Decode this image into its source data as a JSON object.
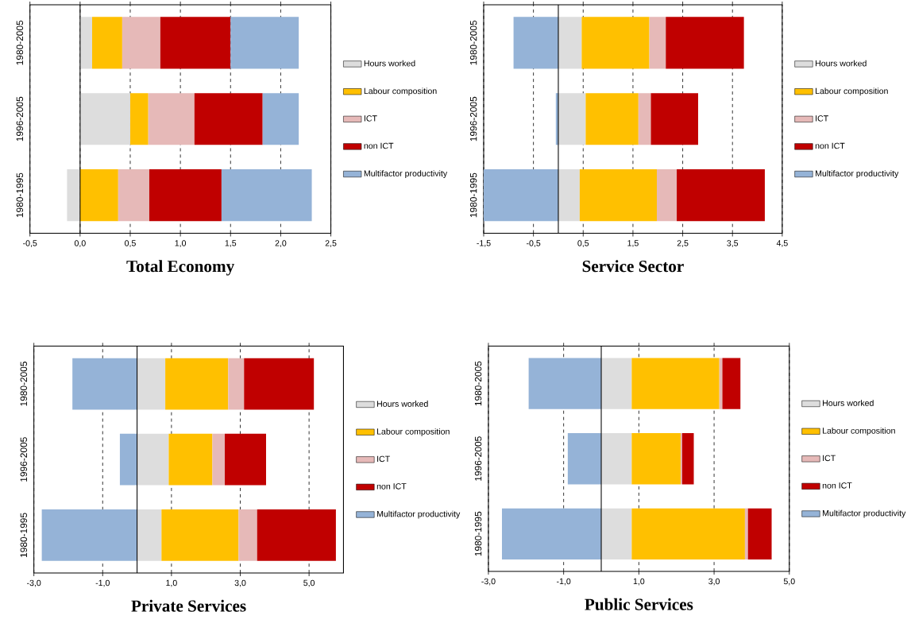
{
  "chart_data": [
    {
      "type": "bar",
      "orientation": "horizontal",
      "stacked": true,
      "title": "Total Economy",
      "categories": [
        "1980-2005",
        "1996-2005",
        "1980-1995"
      ],
      "series": [
        {
          "name": "Hours worked",
          "color": "#dddddd",
          "values": [
            0.12,
            0.5,
            -0.13
          ]
        },
        {
          "name": "Labour composition",
          "color": "#ffc000",
          "values": [
            0.3,
            0.18,
            0.38
          ]
        },
        {
          "name": "ICT",
          "color": "#e6b9b8",
          "values": [
            0.38,
            0.46,
            0.31
          ]
        },
        {
          "name": "non ICT",
          "color": "#c00000",
          "values": [
            0.7,
            0.68,
            0.72
          ]
        },
        {
          "name": "Multifactor productivity",
          "color": "#95b3d7",
          "values": [
            0.68,
            0.36,
            0.9
          ]
        }
      ],
      "xlim": [
        -0.5,
        2.5
      ],
      "xticks": [
        {
          "value": -0.5,
          "label": "-0,5"
        },
        {
          "value": 0,
          "label": "0,0"
        },
        {
          "value": 0.5,
          "label": "0,5"
        },
        {
          "value": 1,
          "label": "1,0"
        },
        {
          "value": 1.5,
          "label": "1,5"
        },
        {
          "value": 2,
          "label": "2,0"
        },
        {
          "value": 2.5,
          "label": "2,5"
        }
      ],
      "grid": "x",
      "legend": "right"
    },
    {
      "type": "bar",
      "orientation": "horizontal",
      "stacked": true,
      "title": "Service Sector",
      "categories": [
        "1980-2005",
        "1996-2005",
        "1980-1995"
      ],
      "series": [
        {
          "name": "Hours worked",
          "color": "#dddddd",
          "values": [
            0.47,
            0.55,
            0.43
          ]
        },
        {
          "name": "Labour composition",
          "color": "#ffc000",
          "values": [
            1.36,
            1.06,
            1.55
          ]
        },
        {
          "name": "ICT",
          "color": "#e6b9b8",
          "values": [
            0.33,
            0.25,
            0.4
          ]
        },
        {
          "name": "non ICT",
          "color": "#c00000",
          "values": [
            1.57,
            0.95,
            1.77
          ]
        },
        {
          "name": "Multifactor productivity",
          "color": "#95b3d7",
          "values": [
            -0.9,
            -0.05,
            -1.5
          ]
        }
      ],
      "xlim": [
        -1.5,
        4.5
      ],
      "xticks": [
        {
          "value": -1.5,
          "label": "-1,5"
        },
        {
          "value": -0.5,
          "label": "-0,5"
        },
        {
          "value": 0.5,
          "label": "0,5"
        },
        {
          "value": 1.5,
          "label": "1,5"
        },
        {
          "value": 2.5,
          "label": "2,5"
        },
        {
          "value": 3.5,
          "label": "3,5"
        },
        {
          "value": 4.5,
          "label": "4,5"
        }
      ],
      "grid": "x",
      "legend": "right"
    },
    {
      "type": "bar",
      "orientation": "horizontal",
      "stacked": true,
      "title": "Private Services",
      "categories": [
        "1980-2005",
        "1996-2005",
        "1980-1995"
      ],
      "series": [
        {
          "name": "Hours worked",
          "color": "#dddddd",
          "values": [
            0.82,
            0.92,
            0.71
          ]
        },
        {
          "name": "Labour composition",
          "color": "#ffc000",
          "values": [
            1.83,
            1.27,
            2.24
          ]
        },
        {
          "name": "ICT",
          "color": "#e6b9b8",
          "values": [
            0.46,
            0.36,
            0.54
          ]
        },
        {
          "name": "non ICT",
          "color": "#c00000",
          "values": [
            2.03,
            1.2,
            2.29
          ]
        },
        {
          "name": "Multifactor productivity",
          "color": "#95b3d7",
          "values": [
            -1.88,
            -0.5,
            -2.77
          ]
        }
      ],
      "xlim": [
        -3,
        6
      ],
      "xticks": [
        {
          "value": -3,
          "label": "-3,0"
        },
        {
          "value": -1,
          "label": "-1,0"
        },
        {
          "value": 1,
          "label": "1,0"
        },
        {
          "value": 3,
          "label": "3,0"
        },
        {
          "value": 5,
          "label": "5,0"
        }
      ],
      "grid": "x",
      "legend": "right"
    },
    {
      "type": "bar",
      "orientation": "horizontal",
      "stacked": true,
      "title": "Public Services",
      "categories": [
        "1980-2005",
        "1996-2005",
        "1980-1995"
      ],
      "series": [
        {
          "name": "Hours worked",
          "color": "#dddddd",
          "values": [
            0.81,
            0.81,
            0.81
          ]
        },
        {
          "name": "Labour composition",
          "color": "#ffc000",
          "values": [
            2.33,
            1.3,
            3.01
          ]
        },
        {
          "name": "ICT",
          "color": "#e6b9b8",
          "values": [
            0.08,
            0.04,
            0.08
          ]
        },
        {
          "name": "non ICT",
          "color": "#c00000",
          "values": [
            0.48,
            0.31,
            0.63
          ]
        },
        {
          "name": "Multifactor productivity",
          "color": "#95b3d7",
          "values": [
            -1.93,
            -0.89,
            -2.64
          ]
        }
      ],
      "xlim": [
        -3,
        5
      ],
      "xticks": [
        {
          "value": -3,
          "label": "-3,0"
        },
        {
          "value": -1,
          "label": "-1,0"
        },
        {
          "value": 1,
          "label": "1,0"
        },
        {
          "value": 3,
          "label": "3,0"
        },
        {
          "value": 5,
          "label": "5,0"
        }
      ],
      "grid": "x",
      "legend": "right"
    }
  ]
}
